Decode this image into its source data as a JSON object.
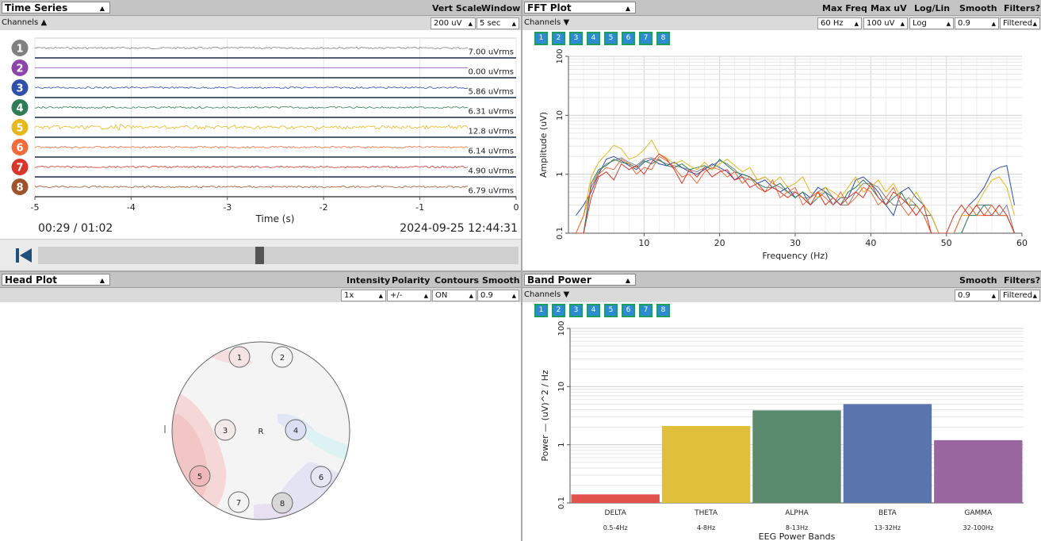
{
  "time_series": {
    "title": "Time Series",
    "vert_scale_label": "Vert Scale",
    "window_label": "Window",
    "channels_label": "Channels",
    "vert_scale_value": "200 uV",
    "window_value": "5 sec",
    "channels": [
      {
        "num": "1",
        "color": "#808080",
        "rms": "7.00 uVrms"
      },
      {
        "num": "2",
        "color": "#8e44ad",
        "rms": "0.00 uVrms"
      },
      {
        "num": "3",
        "color": "#2f4faa",
        "rms": "5.86 uVrms"
      },
      {
        "num": "4",
        "color": "#2e7d57",
        "rms": "6.31 uVrms"
      },
      {
        "num": "5",
        "color": "#e6b820",
        "rms": "12.8 uVrms"
      },
      {
        "num": "6",
        "color": "#f26b3a",
        "rms": "6.14 uVrms"
      },
      {
        "num": "7",
        "color": "#d9352b",
        "rms": "4.90 uVrms"
      },
      {
        "num": "8",
        "color": "#a0522d",
        "rms": "6.79 uVrms"
      }
    ],
    "x_ticks": [
      "-5",
      "-4",
      "-3",
      "-2",
      "-1",
      "0"
    ],
    "xlabel": "Time (s)",
    "playback_time": "00:29 / 01:02",
    "timestamp": "2024-09-25 12:44:31",
    "playback_progress": 0.46
  },
  "fft": {
    "title": "FFT Plot",
    "max_freq_label": "Max Freq",
    "max_uv_label": "Max uV",
    "loglin_label": "Log/Lin",
    "smooth_label": "Smooth",
    "filters_label": "Filters?",
    "channels_label": "Channels",
    "max_freq_value": "60 Hz",
    "max_uv_value": "100 uV",
    "loglin_value": "Log",
    "smooth_value": "0.9",
    "filters_value": "Filtered",
    "channel_buttons": [
      "1",
      "2",
      "3",
      "4",
      "5",
      "6",
      "7",
      "8"
    ]
  },
  "head_plot": {
    "title": "Head Plot",
    "intensity_label": "Intensity",
    "polarity_label": "Polarity",
    "contours_label": "Contours",
    "smooth_label": "Smooth",
    "intensity_value": "1x",
    "polarity_value": "+/-",
    "contours_value": "ON",
    "smooth_value": "0.9",
    "reference_label": "R",
    "electrodes": [
      "1",
      "2",
      "3",
      "4",
      "5",
      "6",
      "7",
      "8"
    ]
  },
  "band_power": {
    "title": "Band Power",
    "smooth_label": "Smooth",
    "filters_label": "Filters?",
    "channels_label": "Channels",
    "smooth_value": "0.9",
    "filters_value": "Filtered",
    "channel_buttons": [
      "1",
      "2",
      "3",
      "4",
      "5",
      "6",
      "7",
      "8"
    ]
  },
  "chart_data": [
    {
      "type": "line",
      "chart": "fft",
      "xlabel": "Frequency (Hz)",
      "ylabel": "Amplitude (uV)",
      "xlim": [
        0,
        60
      ],
      "ylim": [
        0.1,
        100
      ],
      "yscale": "log",
      "x_ticks": [
        "10",
        "20",
        "30",
        "40",
        "50",
        "60"
      ],
      "y_ticks": [
        "0.1",
        "1",
        "10",
        "100"
      ],
      "grid": true,
      "x": [
        1,
        2,
        3,
        4,
        5,
        6,
        7,
        8,
        9,
        10,
        11,
        12,
        13,
        14,
        15,
        16,
        17,
        18,
        19,
        20,
        21,
        22,
        23,
        24,
        25,
        26,
        27,
        28,
        29,
        30,
        31,
        32,
        33,
        34,
        35,
        36,
        37,
        38,
        39,
        40,
        41,
        42,
        43,
        44,
        45,
        46,
        47,
        48,
        49,
        50,
        51,
        52,
        53,
        54,
        55,
        56,
        57,
        58,
        59
      ],
      "series": [
        {
          "color": "#808080",
          "values": [
            0.1,
            0.1,
            0.6,
            1.1,
            1.5,
            1.7,
            1.9,
            1.6,
            1.4,
            1.8,
            1.9,
            1.7,
            1.5,
            1.4,
            1.3,
            1.2,
            1.1,
            1.3,
            1.4,
            1.7,
            1.5,
            1.2,
            0.9,
            0.8,
            0.8,
            0.9,
            0.7,
            0.6,
            0.5,
            0.5,
            0.4,
            0.4,
            0.5,
            0.6,
            0.4,
            0.3,
            0.3,
            0.5,
            0.7,
            0.7,
            0.6,
            0.4,
            0.3,
            0.3,
            0.4,
            0.3,
            0.2,
            0.1,
            0.1,
            0.1,
            0.1,
            0.1,
            0.2,
            0.3,
            0.3,
            0.2,
            0.2,
            0.3,
            0.1
          ]
        },
        {
          "color": "#2f4faa",
          "values": [
            0.2,
            0.3,
            0.5,
            1.0,
            1.8,
            2.0,
            1.7,
            1.4,
            1.2,
            1.6,
            1.8,
            1.5,
            1.4,
            1.6,
            1.3,
            1.1,
            1.0,
            1.2,
            1.5,
            1.3,
            1.1,
            0.8,
            1.0,
            0.9,
            0.7,
            0.8,
            0.6,
            0.5,
            0.6,
            0.4,
            0.5,
            0.4,
            0.6,
            0.5,
            0.3,
            0.4,
            0.4,
            0.8,
            0.9,
            0.7,
            0.5,
            0.3,
            0.2,
            0.5,
            0.6,
            0.4,
            0.3,
            0.2,
            0.1,
            0.1,
            0.1,
            0.2,
            0.3,
            0.4,
            0.6,
            1.1,
            1.3,
            1.4,
            0.3
          ]
        },
        {
          "color": "#2e7d57",
          "values": [
            0.1,
            0.1,
            0.7,
            1.2,
            1.4,
            1.8,
            1.6,
            1.5,
            1.3,
            1.7,
            1.5,
            1.8,
            1.4,
            1.3,
            1.5,
            1.2,
            1.3,
            1.4,
            1.2,
            1.8,
            1.4,
            1.1,
            1.0,
            0.9,
            0.7,
            0.6,
            0.6,
            0.7,
            0.5,
            0.4,
            0.5,
            0.3,
            0.4,
            0.5,
            0.4,
            0.3,
            0.5,
            0.6,
            0.8,
            0.6,
            0.4,
            0.3,
            0.4,
            0.5,
            0.3,
            0.3,
            0.2,
            0.2,
            0.1,
            0.1,
            0.1,
            0.1,
            0.2,
            0.2,
            0.3,
            0.3,
            0.2,
            0.2,
            0.1
          ]
        },
        {
          "color": "#e6b820",
          "values": [
            0.1,
            0.2,
            0.9,
            1.6,
            2.2,
            3.1,
            2.7,
            1.8,
            2.0,
            2.6,
            3.8,
            2.2,
            1.9,
            1.5,
            1.7,
            1.4,
            1.2,
            1.6,
            1.2,
            1.5,
            1.8,
            1.4,
            1.1,
            1.3,
            0.8,
            0.9,
            0.7,
            0.9,
            0.6,
            0.7,
            0.9,
            0.5,
            0.4,
            0.6,
            0.5,
            0.4,
            0.6,
            0.9,
            0.5,
            0.6,
            0.8,
            0.5,
            0.7,
            0.4,
            0.3,
            0.5,
            0.3,
            0.2,
            0.1,
            0.1,
            0.1,
            0.2,
            0.2,
            0.3,
            0.5,
            0.8,
            0.9,
            0.6,
            0.2
          ]
        },
        {
          "color": "#f26b3a",
          "values": [
            0.1,
            0.2,
            0.6,
            1.0,
            1.3,
            1.2,
            1.8,
            1.5,
            1.0,
            1.3,
            1.2,
            2.0,
            1.7,
            1.3,
            0.9,
            1.0,
            0.7,
            1.1,
            1.3,
            1.2,
            0.9,
            1.1,
            0.7,
            0.9,
            0.6,
            0.5,
            0.8,
            0.4,
            0.5,
            0.6,
            0.3,
            0.4,
            0.5,
            0.4,
            0.3,
            0.5,
            0.3,
            0.4,
            0.6,
            0.5,
            0.3,
            0.4,
            0.6,
            0.3,
            0.2,
            0.3,
            0.2,
            0.1,
            0.1,
            0.1,
            0.1,
            0.2,
            0.3,
            0.2,
            0.2,
            0.3,
            0.2,
            0.2,
            0.1
          ]
        },
        {
          "color": "#d9352b",
          "values": [
            0.1,
            0.1,
            0.4,
            0.9,
            1.1,
            0.8,
            1.5,
            1.2,
            1.4,
            1.0,
            1.6,
            2.2,
            1.8,
            1.2,
            0.7,
            1.2,
            0.9,
            1.3,
            0.9,
            1.1,
            1.2,
            0.8,
            0.9,
            0.6,
            0.7,
            0.5,
            0.6,
            0.5,
            0.4,
            0.5,
            0.4,
            0.3,
            0.5,
            0.3,
            0.4,
            0.3,
            0.4,
            0.5,
            0.4,
            0.7,
            0.4,
            0.3,
            0.5,
            0.4,
            0.3,
            0.2,
            0.3,
            0.1,
            0.1,
            0.1,
            0.2,
            0.3,
            0.2,
            0.3,
            0.2,
            0.2,
            0.3,
            0.2,
            0.1
          ]
        }
      ]
    },
    {
      "type": "bar",
      "chart": "band_power",
      "categories": [
        "DELTA",
        "THETA",
        "ALPHA",
        "BETA",
        "GAMMA"
      ],
      "sublabels": [
        "0.5-4Hz",
        "4-8Hz",
        "8-13Hz",
        "13-32Hz",
        "32-100Hz"
      ],
      "values": [
        0.14,
        2.1,
        3.9,
        5.0,
        1.2
      ],
      "colors": [
        "#e0524a",
        "#e0c03a",
        "#5a8a6e",
        "#5a74ad",
        "#9966a0"
      ],
      "xlabel": "EEG Power Bands",
      "ylabel": "Power — (uV)^2 / Hz",
      "yscale": "log",
      "ylim": [
        0.1,
        100
      ],
      "y_ticks": [
        "0.1",
        "1",
        "10",
        "100"
      ],
      "grid": true
    }
  ]
}
